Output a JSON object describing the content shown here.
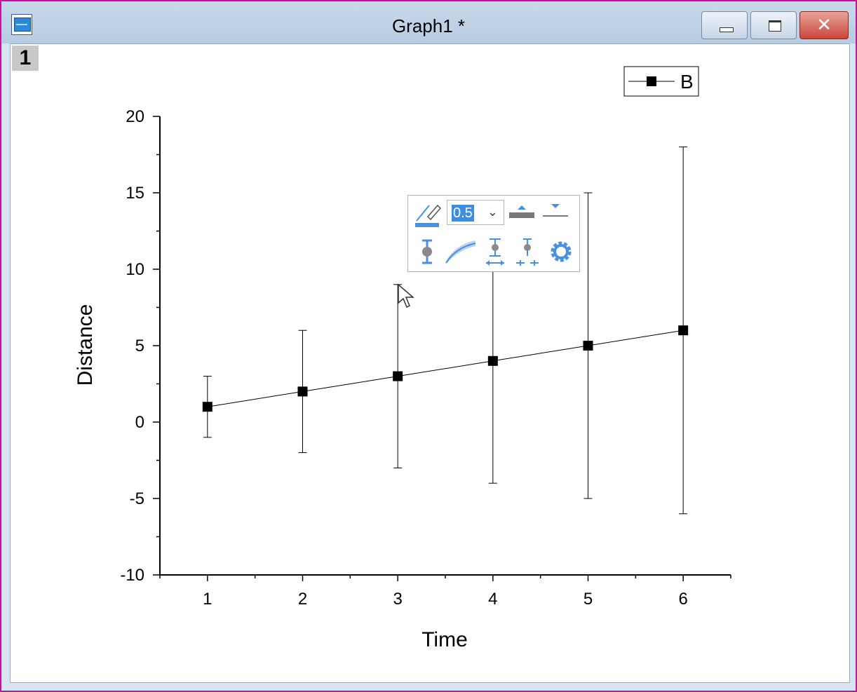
{
  "window": {
    "title": "Graph1 *",
    "layer_label": "1",
    "close_glyph": "✕"
  },
  "toolbar": {
    "line_width_value": "0.5",
    "dropdown_glyph": "⌄",
    "accent_color": "#4a90e2"
  },
  "chart_data": {
    "type": "line",
    "xlabel": "Time",
    "ylabel": "Distance",
    "x": [
      1,
      2,
      3,
      4,
      5,
      6
    ],
    "series": [
      {
        "name": "B",
        "values": [
          1,
          2,
          3,
          4,
          5,
          6
        ],
        "error": [
          2,
          4,
          6,
          8,
          10,
          12
        ],
        "color": "#000000",
        "marker": "square"
      }
    ],
    "xlim": [
      0.5,
      6.5
    ],
    "ylim": [
      -10,
      20
    ],
    "xticks": [
      "1",
      "2",
      "3",
      "4",
      "5",
      "6"
    ],
    "yticks": [
      "-10",
      "-5",
      "0",
      "5",
      "10",
      "15",
      "20"
    ],
    "grid": false,
    "legend_position": "top-right"
  }
}
